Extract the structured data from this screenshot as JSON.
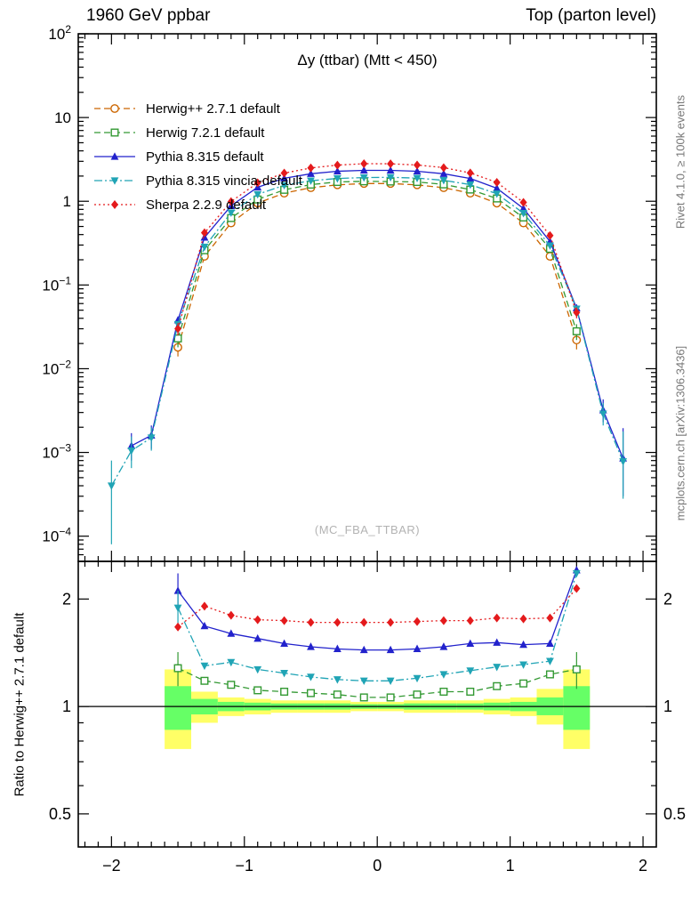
{
  "header": {
    "left": "1960 GeV ppbar",
    "right": "Top (parton level)"
  },
  "plot": {
    "title": "Δy (ttbar) (Mtt < 450)",
    "watermark": "(MC_FBA_TTBAR)"
  },
  "side_labels": {
    "rivet": "Rivet 4.1.0, ≥ 100k events",
    "mcplots": "mcplots.cern.ch [arXiv:1306.3436]"
  },
  "ratio_axis_title": "Ratio to Herwig++ 2.7.1 default",
  "chart_data": {
    "type": "line",
    "title": "Δy (ttbar) (Mtt < 450)",
    "xlabel": "",
    "ylabel": "",
    "legend_position": "top-left",
    "grid": false,
    "x": [
      -2.0,
      -1.85,
      -1.7,
      -1.5,
      -1.3,
      -1.1,
      -0.9,
      -0.7,
      -0.5,
      -0.3,
      -0.1,
      0.1,
      0.3,
      0.5,
      0.7,
      0.9,
      1.1,
      1.3,
      1.5,
      1.7,
      1.85
    ],
    "series": [
      {
        "name": "Herwig++ 2.7.1 default",
        "color": "#cc6600",
        "marker": "circle-open",
        "line": "dashed",
        "values": [
          null,
          null,
          null,
          0.018,
          0.22,
          0.55,
          0.95,
          1.25,
          1.45,
          1.57,
          1.63,
          1.63,
          1.57,
          1.45,
          1.25,
          0.95,
          0.55,
          0.22,
          0.022,
          null,
          null
        ],
        "yerr": [
          [
            3,
            0.004,
            0.004
          ],
          [
            18,
            0.005,
            0.005
          ]
        ],
        "ratio": null,
        "ratio_err": []
      },
      {
        "name": "Herwig 7.2.1 default",
        "color": "#339933",
        "marker": "square-open",
        "line": "dashed",
        "values": [
          null,
          null,
          null,
          0.023,
          0.26,
          0.63,
          1.05,
          1.37,
          1.58,
          1.7,
          1.73,
          1.72,
          1.7,
          1.59,
          1.38,
          1.08,
          0.64,
          0.27,
          0.028,
          null,
          null
        ],
        "yerr": [
          [
            3,
            0.005,
            0.005
          ],
          [
            18,
            0.006,
            0.006
          ]
        ],
        "ratio": [
          null,
          null,
          null,
          1.28,
          1.18,
          1.15,
          1.11,
          1.1,
          1.09,
          1.08,
          1.06,
          1.06,
          1.08,
          1.1,
          1.1,
          1.14,
          1.16,
          1.23,
          1.27,
          null,
          null
        ],
        "ratio_err": [
          [
            3,
            0.14,
            0.14
          ],
          [
            18,
            0.15,
            0.15
          ]
        ]
      },
      {
        "name": "Pythia 8.315 default",
        "color": "#2222cc",
        "marker": "triangle-up",
        "line": "solid",
        "values": [
          null,
          0.0012,
          0.0016,
          0.038,
          0.37,
          0.88,
          1.47,
          1.88,
          2.13,
          2.28,
          2.34,
          2.34,
          2.28,
          2.13,
          1.87,
          1.43,
          0.82,
          0.33,
          0.053,
          0.0032,
          0.00085
        ],
        "yerr": [
          [
            1,
            0.0004,
            0.0005
          ],
          [
            2,
            0.0005,
            0.0005
          ],
          [
            19,
            0.0009,
            0.0011
          ],
          [
            20,
            0.00055,
            0.0011
          ]
        ],
        "ratio": [
          null,
          null,
          null,
          2.11,
          1.68,
          1.6,
          1.55,
          1.5,
          1.47,
          1.45,
          1.44,
          1.44,
          1.45,
          1.47,
          1.5,
          1.51,
          1.49,
          1.5,
          2.41,
          null,
          null
        ],
        "ratio_err": [
          [
            3,
            0.25,
            0.25
          ]
        ]
      },
      {
        "name": "Pythia 8.315 vincia-default",
        "color": "#20a4b5",
        "marker": "triangle-down",
        "line": "dashdot",
        "values": [
          0.0004,
          0.00105,
          0.0015,
          0.034,
          0.285,
          0.73,
          1.21,
          1.55,
          1.76,
          1.87,
          1.92,
          1.93,
          1.89,
          1.78,
          1.58,
          1.23,
          0.72,
          0.295,
          0.052,
          0.0029,
          0.00078
        ],
        "yerr": [
          [
            0,
            0.00032,
            0.0004
          ],
          [
            1,
            0.0004,
            0.0005
          ],
          [
            2,
            0.00045,
            0.0005
          ],
          [
            19,
            0.0008,
            0.001
          ],
          [
            20,
            0.0005,
            0.001
          ]
        ],
        "ratio": [
          null,
          null,
          null,
          1.89,
          1.3,
          1.33,
          1.27,
          1.24,
          1.21,
          1.19,
          1.18,
          1.18,
          1.2,
          1.23,
          1.26,
          1.29,
          1.31,
          1.34,
          2.36,
          null,
          null
        ],
        "ratio_err": [
          [
            3,
            0.22,
            0.22
          ]
        ]
      },
      {
        "name": "Sherpa 2.2.9 default",
        "color": "#e41a1c",
        "marker": "diamond",
        "line": "dotted",
        "values": [
          null,
          null,
          null,
          0.03,
          0.42,
          0.99,
          1.66,
          2.17,
          2.5,
          2.7,
          2.81,
          2.8,
          2.71,
          2.52,
          2.18,
          1.68,
          0.97,
          0.39,
          0.047,
          null,
          null
        ],
        "yerr": [
          [
            3,
            0.005,
            0.005
          ],
          [
            18,
            0.007,
            0.007
          ]
        ],
        "ratio": [
          null,
          null,
          null,
          1.67,
          1.91,
          1.8,
          1.75,
          1.74,
          1.72,
          1.72,
          1.72,
          1.72,
          1.73,
          1.74,
          1.74,
          1.77,
          1.76,
          1.77,
          2.14,
          null,
          null
        ],
        "ratio_err": []
      }
    ],
    "axes": {
      "xlim": [
        -2.25,
        2.1
      ],
      "x_major": [
        -2,
        -1,
        0,
        1,
        2
      ],
      "x_labels": [
        "−2",
        "−1",
        "0",
        "1",
        "2"
      ],
      "x_minor_step": 0.1,
      "main_y": {
        "min": 5e-05,
        "max": 100,
        "log": true
      },
      "main_y_major": [
        100,
        10,
        1,
        0.1,
        0.01,
        0.001,
        0.0001
      ],
      "main_y_labels": [
        "10^2",
        "10",
        "1",
        "10^−1",
        "10^−2",
        "10^−3",
        "10^−4"
      ],
      "ratio_y": {
        "min": 0.404,
        "max": 2.55,
        "log": true
      },
      "ratio_y_major": [
        2,
        1,
        0.5
      ],
      "ratio_y_minor": [
        0.6,
        0.7,
        0.8,
        0.9
      ],
      "ratio_y_labels": [
        "2",
        "1",
        "0.5"
      ]
    },
    "ratio": {
      "reference": "Herwig++ 2.7.1 default",
      "ref_line": 1,
      "band_edges": [
        -1.6,
        -1.4,
        -1.2,
        -1.0,
        -0.8,
        -0.6,
        -0.4,
        -0.2,
        0.0,
        0.2,
        0.4,
        0.6,
        0.8,
        1.0,
        1.2,
        1.4,
        1.6
      ],
      "band_yellow": [
        [
          0.76,
          1.27
        ],
        [
          0.9,
          1.1
        ],
        [
          0.94,
          1.06
        ],
        [
          0.95,
          1.05
        ],
        [
          0.96,
          1.04
        ],
        [
          0.96,
          1.04
        ],
        [
          0.96,
          1.04
        ],
        [
          0.97,
          1.03
        ],
        [
          0.97,
          1.03
        ],
        [
          0.96,
          1.04
        ],
        [
          0.96,
          1.04
        ],
        [
          0.96,
          1.04
        ],
        [
          0.95,
          1.05
        ],
        [
          0.94,
          1.06
        ],
        [
          0.89,
          1.12
        ],
        [
          0.76,
          1.27
        ]
      ],
      "band_green": [
        [
          0.86,
          1.14
        ],
        [
          0.95,
          1.05
        ],
        [
          0.97,
          1.03
        ],
        [
          0.975,
          1.025
        ],
        [
          0.98,
          1.02
        ],
        [
          0.98,
          1.02
        ],
        [
          0.98,
          1.02
        ],
        [
          0.985,
          1.015
        ],
        [
          0.985,
          1.015
        ],
        [
          0.98,
          1.02
        ],
        [
          0.98,
          1.02
        ],
        [
          0.98,
          1.02
        ],
        [
          0.975,
          1.025
        ],
        [
          0.97,
          1.03
        ],
        [
          0.945,
          1.06
        ],
        [
          0.86,
          1.14
        ]
      ],
      "colors": {
        "yellow": "#ffff66",
        "green": "#66ff66"
      }
    }
  }
}
